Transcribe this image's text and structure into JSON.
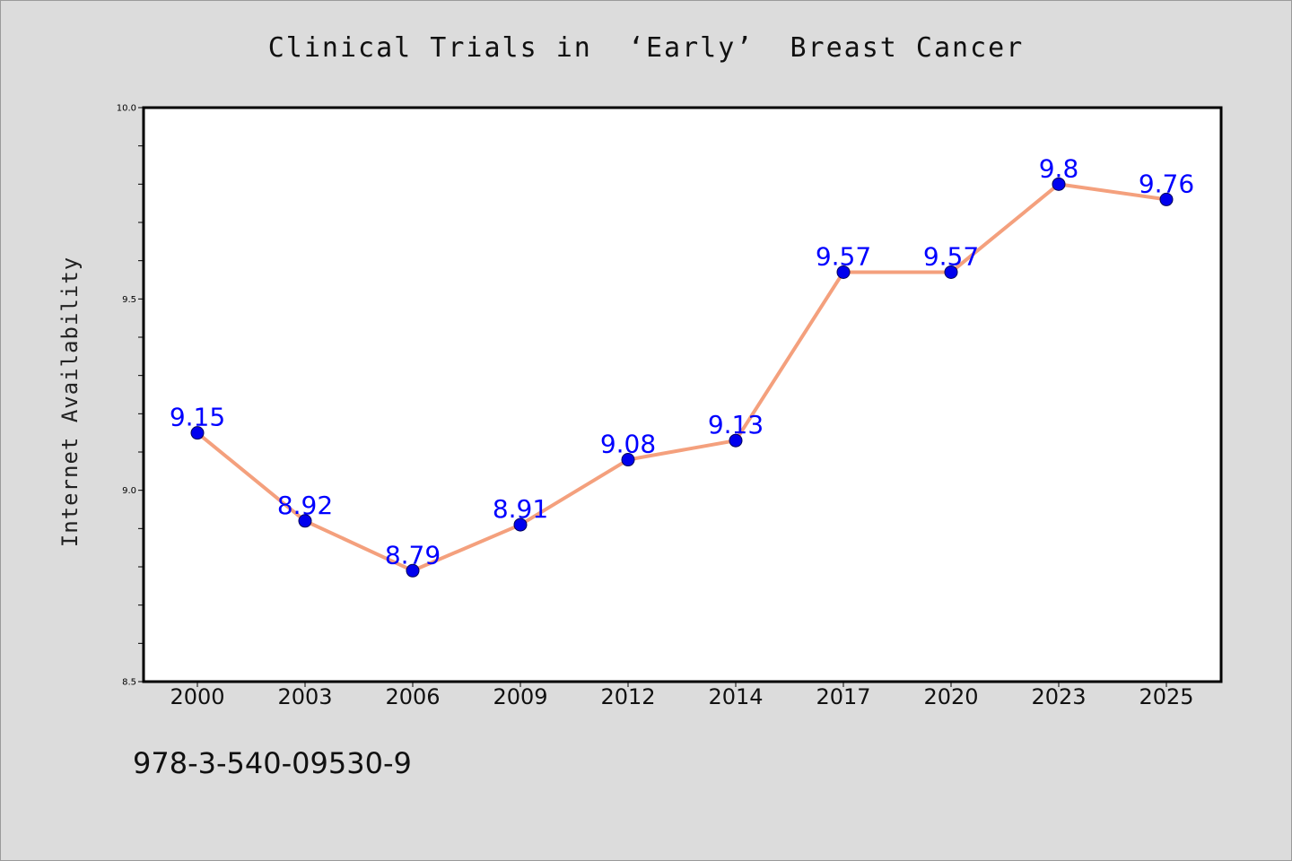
{
  "chart_data": {
    "type": "line",
    "title": "Clinical Trials in  ‘Early’  Breast Cancer",
    "xlabel": "",
    "ylabel": "Internet Availability",
    "categories": [
      "2000",
      "2003",
      "2006",
      "2009",
      "2012",
      "2014",
      "2017",
      "2020",
      "2023",
      "2025"
    ],
    "series": [
      {
        "values": [
          9.15,
          8.92,
          8.79,
          8.91,
          9.08,
          9.13,
          9.57,
          9.57,
          9.8,
          9.76
        ],
        "data_labels": [
          "9.15",
          "8.92",
          "8.79",
          "8.91",
          "9.08",
          "9.13",
          "9.57",
          "9.57",
          "9.8",
          "9.76"
        ],
        "line_color": "#f4a07d",
        "marker_color": "#0000ee",
        "label_color": "#0000ff"
      }
    ],
    "ylim": [
      8.5,
      10.0
    ],
    "yticks": [
      "8.5",
      "9.0",
      "9.5",
      "10.0"
    ],
    "grid": false,
    "legend": "none"
  },
  "footer": {
    "code": "978-3-540-09530-9"
  }
}
